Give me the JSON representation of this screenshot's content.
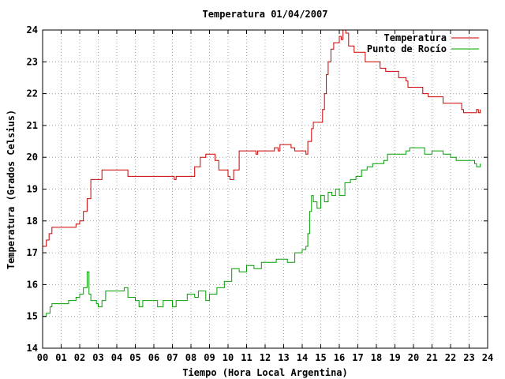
{
  "chart_data": {
    "type": "line",
    "title": "Temperatura 01/04/2007",
    "xlabel": "Tiempo (Hora Local Argentina)",
    "ylabel": "Temperatura (Grados Celsius)",
    "xlim": [
      0,
      24
    ],
    "ylim": [
      14,
      24
    ],
    "x_ticks": [
      "00",
      "01",
      "02",
      "03",
      "04",
      "05",
      "06",
      "07",
      "08",
      "09",
      "10",
      "11",
      "12",
      "13",
      "14",
      "15",
      "16",
      "17",
      "18",
      "19",
      "20",
      "21",
      "22",
      "23",
      "24"
    ],
    "y_ticks": [
      14,
      15,
      16,
      17,
      18,
      19,
      20,
      21,
      22,
      23,
      24
    ],
    "grid": true,
    "legend_position": "top-right",
    "series": [
      {
        "name": "Temperatura",
        "color": "#cc0000",
        "points": [
          [
            0.0,
            17.2
          ],
          [
            0.2,
            17.4
          ],
          [
            0.35,
            17.6
          ],
          [
            0.5,
            17.8
          ],
          [
            1.0,
            17.8
          ],
          [
            1.5,
            17.8
          ],
          [
            1.8,
            17.9
          ],
          [
            2.0,
            18.0
          ],
          [
            2.2,
            18.3
          ],
          [
            2.4,
            18.7
          ],
          [
            2.6,
            19.3
          ],
          [
            3.0,
            19.3
          ],
          [
            3.2,
            19.6
          ],
          [
            4.0,
            19.6
          ],
          [
            4.5,
            19.6
          ],
          [
            4.6,
            19.4
          ],
          [
            5.5,
            19.4
          ],
          [
            6.5,
            19.4
          ],
          [
            7.0,
            19.4
          ],
          [
            7.1,
            19.3
          ],
          [
            7.2,
            19.4
          ],
          [
            8.0,
            19.4
          ],
          [
            8.2,
            19.7
          ],
          [
            8.5,
            20.0
          ],
          [
            8.8,
            20.1
          ],
          [
            9.0,
            20.1
          ],
          [
            9.3,
            19.9
          ],
          [
            9.5,
            19.6
          ],
          [
            9.8,
            19.6
          ],
          [
            10.0,
            19.4
          ],
          [
            10.1,
            19.3
          ],
          [
            10.3,
            19.6
          ],
          [
            10.6,
            20.2
          ],
          [
            11.0,
            20.2
          ],
          [
            11.4,
            20.2
          ],
          [
            11.5,
            20.1
          ],
          [
            11.6,
            20.2
          ],
          [
            12.0,
            20.2
          ],
          [
            12.4,
            20.2
          ],
          [
            12.5,
            20.3
          ],
          [
            12.7,
            20.2
          ],
          [
            12.8,
            20.4
          ],
          [
            13.2,
            20.4
          ],
          [
            13.4,
            20.3
          ],
          [
            13.6,
            20.2
          ],
          [
            14.0,
            20.2
          ],
          [
            14.2,
            20.1
          ],
          [
            14.3,
            20.5
          ],
          [
            14.5,
            20.9
          ],
          [
            14.6,
            21.1
          ],
          [
            15.0,
            21.1
          ],
          [
            15.1,
            21.5
          ],
          [
            15.2,
            22.0
          ],
          [
            15.3,
            22.6
          ],
          [
            15.4,
            23.0
          ],
          [
            15.55,
            23.4
          ],
          [
            15.7,
            23.6
          ],
          [
            15.9,
            23.6
          ],
          [
            16.0,
            23.8
          ],
          [
            16.1,
            23.7
          ],
          [
            16.2,
            24.0
          ],
          [
            16.35,
            23.9
          ],
          [
            16.5,
            23.5
          ],
          [
            16.7,
            23.5
          ],
          [
            16.8,
            23.3
          ],
          [
            17.3,
            23.3
          ],
          [
            17.4,
            23.0
          ],
          [
            18.0,
            23.0
          ],
          [
            18.2,
            22.8
          ],
          [
            18.5,
            22.7
          ],
          [
            19.0,
            22.7
          ],
          [
            19.2,
            22.5
          ],
          [
            19.6,
            22.4
          ],
          [
            19.7,
            22.2
          ],
          [
            20.4,
            22.2
          ],
          [
            20.5,
            22.0
          ],
          [
            20.8,
            21.9
          ],
          [
            21.5,
            21.9
          ],
          [
            21.6,
            21.7
          ],
          [
            22.4,
            21.7
          ],
          [
            22.6,
            21.5
          ],
          [
            22.7,
            21.4
          ],
          [
            23.3,
            21.4
          ],
          [
            23.4,
            21.5
          ],
          [
            23.5,
            21.4
          ],
          [
            23.6,
            21.5
          ]
        ]
      },
      {
        "name": "Punto de Rocío",
        "color": "#00a000",
        "points": [
          [
            0.0,
            15.0
          ],
          [
            0.2,
            15.1
          ],
          [
            0.4,
            15.3
          ],
          [
            0.5,
            15.4
          ],
          [
            1.0,
            15.4
          ],
          [
            1.4,
            15.5
          ],
          [
            1.8,
            15.6
          ],
          [
            2.0,
            15.7
          ],
          [
            2.2,
            15.9
          ],
          [
            2.4,
            16.4
          ],
          [
            2.5,
            15.7
          ],
          [
            2.6,
            15.5
          ],
          [
            2.9,
            15.4
          ],
          [
            3.0,
            15.3
          ],
          [
            3.2,
            15.5
          ],
          [
            3.4,
            15.8
          ],
          [
            4.0,
            15.8
          ],
          [
            4.4,
            15.9
          ],
          [
            4.6,
            15.6
          ],
          [
            5.0,
            15.5
          ],
          [
            5.2,
            15.3
          ],
          [
            5.4,
            15.5
          ],
          [
            6.0,
            15.5
          ],
          [
            6.2,
            15.3
          ],
          [
            6.5,
            15.5
          ],
          [
            7.0,
            15.3
          ],
          [
            7.2,
            15.5
          ],
          [
            7.6,
            15.5
          ],
          [
            7.8,
            15.7
          ],
          [
            8.2,
            15.6
          ],
          [
            8.4,
            15.8
          ],
          [
            8.8,
            15.5
          ],
          [
            9.0,
            15.7
          ],
          [
            9.4,
            15.9
          ],
          [
            9.8,
            16.1
          ],
          [
            10.2,
            16.5
          ],
          [
            10.6,
            16.4
          ],
          [
            11.0,
            16.6
          ],
          [
            11.4,
            16.5
          ],
          [
            11.8,
            16.7
          ],
          [
            12.2,
            16.7
          ],
          [
            12.6,
            16.8
          ],
          [
            13.2,
            16.7
          ],
          [
            13.6,
            17.0
          ],
          [
            14.0,
            17.1
          ],
          [
            14.2,
            17.2
          ],
          [
            14.3,
            17.6
          ],
          [
            14.4,
            18.3
          ],
          [
            14.5,
            18.8
          ],
          [
            14.6,
            18.6
          ],
          [
            14.8,
            18.4
          ],
          [
            15.0,
            18.8
          ],
          [
            15.2,
            18.6
          ],
          [
            15.4,
            18.9
          ],
          [
            15.6,
            18.8
          ],
          [
            15.8,
            19.0
          ],
          [
            16.0,
            18.8
          ],
          [
            16.3,
            19.2
          ],
          [
            16.6,
            19.3
          ],
          [
            16.9,
            19.4
          ],
          [
            17.2,
            19.6
          ],
          [
            17.5,
            19.7
          ],
          [
            17.8,
            19.8
          ],
          [
            18.1,
            19.8
          ],
          [
            18.4,
            19.9
          ],
          [
            18.6,
            20.1
          ],
          [
            19.0,
            20.1
          ],
          [
            19.3,
            20.1
          ],
          [
            19.6,
            20.2
          ],
          [
            19.8,
            20.3
          ],
          [
            20.4,
            20.3
          ],
          [
            20.6,
            20.1
          ],
          [
            21.0,
            20.2
          ],
          [
            21.4,
            20.2
          ],
          [
            21.6,
            20.1
          ],
          [
            22.0,
            20.0
          ],
          [
            22.3,
            19.9
          ],
          [
            22.6,
            19.9
          ],
          [
            23.0,
            19.9
          ],
          [
            23.3,
            19.8
          ],
          [
            23.4,
            19.7
          ],
          [
            23.6,
            19.8
          ]
        ]
      }
    ]
  }
}
